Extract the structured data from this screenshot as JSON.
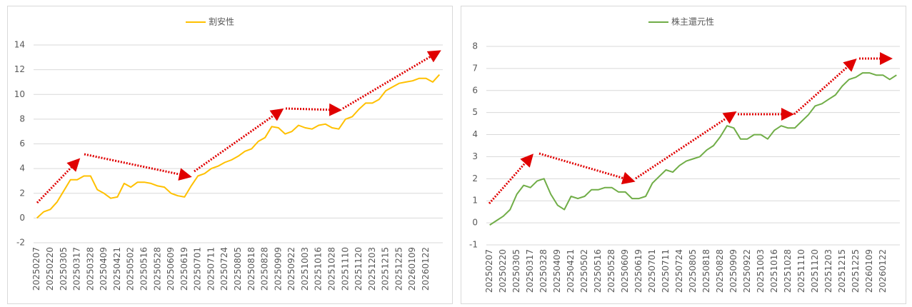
{
  "chart_data": [
    {
      "type": "line",
      "categories": [
        "20250207",
        null,
        "20250220",
        null,
        "20250305",
        null,
        "20250317",
        null,
        "20250328",
        null,
        "20250409",
        null,
        "20250421",
        null,
        "20250502",
        null,
        "20250516",
        null,
        "20250528",
        null,
        "20250609",
        null,
        "20250619",
        null,
        "20250701",
        null,
        "20250711",
        null,
        "20250724",
        null,
        "20250805",
        null,
        "20250818",
        null,
        "20250828",
        null,
        "20250909",
        null,
        "20250922",
        null,
        "20251003",
        null,
        "20251016",
        null,
        "20251028",
        null,
        "20251110",
        null,
        "20251120",
        null,
        "20251203",
        null,
        "20251215",
        null,
        "20251225",
        null,
        "20260109",
        null,
        "20260122",
        null,
        null
      ],
      "series": [
        {
          "name": "割安性",
          "color": "#FFC000",
          "values": [
            0.0,
            0.5,
            0.7,
            1.3,
            2.2,
            3.1,
            3.1,
            3.4,
            3.4,
            2.3,
            2.0,
            1.6,
            1.7,
            2.8,
            2.5,
            2.9,
            2.9,
            2.8,
            2.6,
            2.5,
            2.0,
            1.8,
            1.7,
            2.6,
            3.4,
            3.6,
            4.0,
            4.2,
            4.5,
            4.7,
            5.0,
            5.4,
            5.6,
            6.2,
            6.5,
            7.4,
            7.3,
            6.8,
            7.0,
            7.5,
            7.3,
            7.2,
            7.5,
            7.6,
            7.3,
            7.2,
            8.0,
            8.2,
            8.8,
            9.3,
            9.3,
            9.6,
            10.3,
            10.6,
            10.9,
            11.0,
            11.1,
            11.3,
            11.3,
            11.0,
            11.6
          ]
        }
      ],
      "ylim": [
        -2,
        14
      ],
      "yticks": [
        -2,
        0,
        2,
        4,
        6,
        8,
        10,
        12,
        14
      ],
      "grid": true,
      "legend": "top"
    },
    {
      "type": "line",
      "categories": [
        "20250207",
        null,
        "20250220",
        null,
        "20250305",
        null,
        "20250317",
        null,
        "20250328",
        null,
        "20250409",
        null,
        "20250421",
        null,
        "20250502",
        null,
        "20250516",
        null,
        "20250528",
        null,
        "20250609",
        null,
        "20250619",
        null,
        "20250701",
        null,
        "20250711",
        null,
        "20250724",
        null,
        "20250805",
        null,
        "20250818",
        null,
        "20250828",
        null,
        "20250909",
        null,
        "20250922",
        null,
        "20251003",
        null,
        "20251016",
        null,
        "20251028",
        null,
        "20251110",
        null,
        "20251120",
        null,
        "20251203",
        null,
        "20251215",
        null,
        "20251225",
        null,
        "20260109",
        null,
        "20260122",
        null,
        null
      ],
      "series": [
        {
          "name": "株主還元性",
          "color": "#70AD47",
          "values": [
            -0.1,
            0.1,
            0.3,
            0.6,
            1.3,
            1.7,
            1.6,
            1.9,
            2.0,
            1.3,
            0.8,
            0.6,
            1.2,
            1.1,
            1.2,
            1.5,
            1.5,
            1.6,
            1.6,
            1.4,
            1.4,
            1.1,
            1.1,
            1.2,
            1.8,
            2.1,
            2.4,
            2.3,
            2.6,
            2.8,
            2.9,
            3.0,
            3.3,
            3.5,
            3.9,
            4.4,
            4.3,
            3.8,
            3.8,
            4.0,
            4.0,
            3.8,
            4.2,
            4.4,
            4.3,
            4.3,
            4.6,
            4.9,
            5.3,
            5.4,
            5.6,
            5.8,
            6.2,
            6.5,
            6.6,
            6.8,
            6.8,
            6.7,
            6.7,
            6.5,
            6.7
          ]
        }
      ],
      "ylim": [
        -1,
        8
      ],
      "yticks": [
        -1,
        0,
        1,
        2,
        3,
        4,
        5,
        6,
        7,
        8
      ],
      "grid": true,
      "legend": "top"
    }
  ]
}
